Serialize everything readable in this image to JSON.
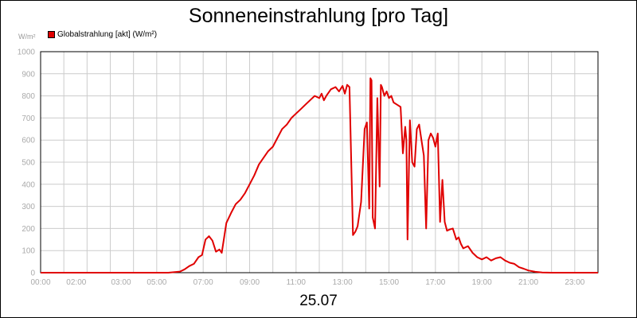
{
  "title": "Sonneneinstrahlung [pro Tag]",
  "date_label": "25.07",
  "chart_data": {
    "type": "line",
    "title": "Sonneneinstrahlung [pro Tag]",
    "ylabel": "W/m²",
    "xlabel": "25.07",
    "ylim": [
      0,
      1000
    ],
    "xlim": [
      0,
      24
    ],
    "grid": true,
    "legend_position": "top-left",
    "y_ticks": [
      0,
      100,
      200,
      300,
      400,
      500,
      600,
      700,
      800,
      900,
      1000
    ],
    "x_ticks": [
      {
        "hour": 0,
        "label": "00:00"
      },
      {
        "hour": 2,
        "label": "02:00"
      },
      {
        "hour": 3,
        "label": "03:00"
      },
      {
        "hour": 5,
        "label": "05:00"
      },
      {
        "hour": 7,
        "label": "07:00"
      },
      {
        "hour": 9,
        "label": "09:00"
      },
      {
        "hour": 11,
        "label": "11:00"
      },
      {
        "hour": 13,
        "label": "13:00"
      },
      {
        "hour": 15,
        "label": "15:00"
      },
      {
        "hour": 17,
        "label": "17:00"
      },
      {
        "hour": 19,
        "label": "19:00"
      },
      {
        "hour": 21,
        "label": "21:00"
      },
      {
        "hour": 23,
        "label": "23:00"
      }
    ],
    "series": [
      {
        "name": "Globalstrahlung [akt] (W/m²)",
        "color": "#e00000",
        "x": [
          0,
          5.5,
          6.0,
          6.2,
          6.4,
          6.6,
          6.8,
          6.95,
          7.1,
          7.25,
          7.4,
          7.55,
          7.7,
          7.8,
          8.0,
          8.2,
          8.4,
          8.6,
          8.8,
          9.0,
          9.2,
          9.4,
          9.6,
          9.8,
          10.0,
          10.2,
          10.4,
          10.6,
          10.8,
          11.0,
          11.2,
          11.4,
          11.6,
          11.8,
          12.0,
          12.1,
          12.2,
          12.3,
          12.5,
          12.7,
          12.85,
          13.0,
          13.1,
          13.2,
          13.3,
          13.45,
          13.55,
          13.65,
          13.8,
          13.95,
          14.05,
          14.15,
          14.2,
          14.25,
          14.3,
          14.4,
          14.5,
          14.6,
          14.65,
          14.7,
          14.8,
          14.9,
          15.0,
          15.1,
          15.2,
          15.35,
          15.5,
          15.6,
          15.7,
          15.75,
          15.8,
          15.9,
          16.0,
          16.1,
          16.2,
          16.3,
          16.4,
          16.5,
          16.6,
          16.7,
          16.8,
          16.9,
          17.0,
          17.1,
          17.2,
          17.3,
          17.4,
          17.5,
          17.6,
          17.75,
          17.9,
          18.0,
          18.1,
          18.2,
          18.4,
          18.6,
          18.8,
          19.0,
          19.2,
          19.4,
          19.6,
          19.8,
          20.0,
          20.2,
          20.4,
          20.6,
          20.8,
          21.0,
          21.3,
          21.6,
          22.0,
          24.0
        ],
        "values": [
          0,
          0,
          5,
          15,
          30,
          40,
          70,
          80,
          150,
          165,
          145,
          95,
          105,
          90,
          225,
          270,
          310,
          330,
          360,
          400,
          440,
          490,
          520,
          550,
          570,
          610,
          650,
          670,
          700,
          720,
          740,
          760,
          780,
          800,
          790,
          810,
          780,
          800,
          830,
          840,
          820,
          845,
          810,
          850,
          840,
          170,
          185,
          210,
          320,
          650,
          680,
          290,
          880,
          870,
          250,
          200,
          790,
          390,
          850,
          840,
          800,
          820,
          790,
          800,
          770,
          760,
          750,
          540,
          660,
          600,
          150,
          690,
          500,
          480,
          650,
          670,
          600,
          530,
          200,
          600,
          630,
          610,
          570,
          630,
          230,
          420,
          230,
          190,
          195,
          200,
          150,
          160,
          130,
          110,
          120,
          90,
          70,
          60,
          70,
          55,
          65,
          70,
          55,
          45,
          40,
          25,
          18,
          10,
          4,
          1,
          0,
          0
        ]
      }
    ]
  }
}
